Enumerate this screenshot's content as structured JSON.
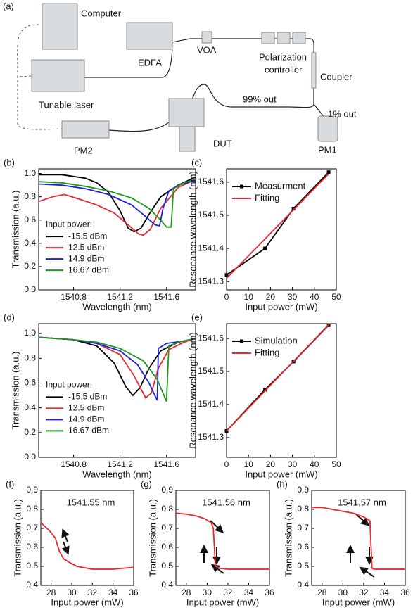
{
  "diagram": {
    "panel_label": "(a)",
    "computer": "Computer",
    "edfa": "EDFA",
    "voa": "VOA",
    "pc_line1": "Polarization",
    "pc_line2": "controller",
    "coupler": "Coupler",
    "laser": "Tunable laser",
    "out99": "99% out",
    "out1": "1% out",
    "pm2": "PM2",
    "dut": "DUT",
    "pm1": "PM1"
  },
  "chart_data": [
    {
      "type": "line",
      "panel_label": "(b)",
      "xlabel": "Wavelength (nm)",
      "ylabel": "Transmission (a.u.)",
      "xlim": [
        1540.5,
        1541.85
      ],
      "ylim": [
        0,
        1.04
      ],
      "xticks": [
        1540.8,
        1541.2,
        1541.6
      ],
      "yticks": [
        {
          "value": 0,
          "label": "0.0"
        },
        {
          "value": 0.2,
          "label": "0.2"
        },
        {
          "value": 0.4,
          "label": "0.4"
        },
        {
          "value": 0.6,
          "label": "0.6"
        },
        {
          "value": 0.8,
          "label": "0.8"
        },
        {
          "value": 1,
          "label": "1.0"
        }
      ],
      "legend_title": "Input power:",
      "series": [
        {
          "name": "-15.5 dBm",
          "color": "#000000",
          "x": [
            1540.5,
            1540.7,
            1540.9,
            1541.0,
            1541.1,
            1541.2,
            1541.27,
            1541.32,
            1541.38,
            1541.45,
            1541.55,
            1541.7,
            1541.85
          ],
          "values": [
            0.99,
            0.99,
            0.96,
            0.92,
            0.84,
            0.68,
            0.53,
            0.5,
            0.53,
            0.65,
            0.8,
            0.9,
            0.97
          ]
        },
        {
          "name": "12.5 dBm",
          "color": "#e8262b",
          "x": [
            1540.5,
            1540.62,
            1540.72,
            1540.85,
            1541.0,
            1541.15,
            1541.28,
            1541.36,
            1541.4,
            1541.46,
            1541.55,
            1541.7,
            1541.85
          ],
          "values": [
            0.76,
            0.8,
            0.82,
            0.78,
            0.73,
            0.66,
            0.55,
            0.48,
            0.47,
            0.52,
            0.7,
            0.88,
            0.95
          ]
        },
        {
          "name": "14.9 dBm",
          "color": "#1f1fe0",
          "x": [
            1540.5,
            1540.7,
            1540.9,
            1541.1,
            1541.3,
            1541.42,
            1541.5,
            1541.54,
            1541.57,
            1541.62,
            1541.7,
            1541.85
          ],
          "values": [
            0.91,
            0.9,
            0.87,
            0.82,
            0.73,
            0.63,
            0.56,
            0.55,
            0.7,
            0.85,
            0.9,
            0.94
          ]
        },
        {
          "name": "16.67 dBm",
          "color": "#1e9a1e",
          "x": [
            1540.5,
            1540.7,
            1540.9,
            1541.1,
            1541.3,
            1541.45,
            1541.55,
            1541.6,
            1541.64,
            1541.66,
            1541.75,
            1541.85
          ],
          "values": [
            0.93,
            0.92,
            0.89,
            0.85,
            0.79,
            0.7,
            0.6,
            0.54,
            0.54,
            0.87,
            0.92,
            0.95
          ]
        }
      ]
    },
    {
      "type": "line",
      "panel_label": "(c)",
      "xlabel": "Input power (mW)",
      "ylabel": "Resonance wavelength (nm)",
      "xlim": [
        0,
        50
      ],
      "ylim": [
        1541.275,
        1541.64
      ],
      "xticks": [
        0,
        10,
        20,
        30,
        40,
        50
      ],
      "yticks": [
        1541.3,
        1541.4,
        1541.5,
        1541.6
      ],
      "series": [
        {
          "name": "Measurment",
          "color": "#000000",
          "marker": "square",
          "x": [
            0,
            17.5,
            30.5,
            46.5
          ],
          "values": [
            1541.32,
            1541.4,
            1541.52,
            1541.63
          ]
        },
        {
          "name": "Fitting",
          "color": "#e8262b",
          "x": [
            0,
            46.5
          ],
          "values": [
            1541.31,
            1541.625
          ]
        }
      ]
    },
    {
      "type": "line",
      "panel_label": "(d)",
      "xlabel": "Wavelength (nm)",
      "ylabel": "Transmission (a.u.)",
      "xlim": [
        1540.5,
        1541.85
      ],
      "ylim": [
        0,
        1.08
      ],
      "xticks": [
        1540.8,
        1541.2,
        1541.6
      ],
      "yticks": [
        {
          "value": 0,
          "label": "0.0"
        },
        {
          "value": 0.2,
          "label": "0.2"
        },
        {
          "value": 0.4,
          "label": "0.4"
        },
        {
          "value": 0.6,
          "label": "0.6"
        },
        {
          "value": 0.8,
          "label": "0.8"
        },
        {
          "value": 1,
          "label": "1.0"
        }
      ],
      "legend_title": "Input power:",
      "series": [
        {
          "name": "-15.5 dBm",
          "color": "#000000",
          "x": [
            1540.5,
            1540.8,
            1541.0,
            1541.15,
            1541.25,
            1541.31,
            1541.37,
            1541.45,
            1541.55,
            1541.7,
            1541.85
          ],
          "values": [
            0.97,
            0.95,
            0.9,
            0.76,
            0.57,
            0.5,
            0.56,
            0.72,
            0.86,
            0.93,
            0.96
          ]
        },
        {
          "name": "12.5 dBm",
          "color": "#e8262b",
          "x": [
            1540.5,
            1540.8,
            1541.0,
            1541.2,
            1541.32,
            1541.42,
            1541.47,
            1541.53,
            1541.62,
            1541.75,
            1541.85
          ],
          "values": [
            0.97,
            0.95,
            0.92,
            0.83,
            0.66,
            0.48,
            0.52,
            0.72,
            0.87,
            0.93,
            0.96
          ]
        },
        {
          "name": "14.9 dBm",
          "color": "#1f1fe0",
          "x": [
            1540.5,
            1540.8,
            1541.0,
            1541.2,
            1541.35,
            1541.45,
            1541.52,
            1541.53,
            1541.6,
            1541.75,
            1541.85
          ],
          "values": [
            0.97,
            0.95,
            0.92,
            0.86,
            0.75,
            0.6,
            0.46,
            0.88,
            0.92,
            0.94,
            0.96
          ]
        },
        {
          "name": "16.67 dBm",
          "color": "#1e9a1e",
          "x": [
            1540.5,
            1540.8,
            1541.0,
            1541.2,
            1541.4,
            1541.52,
            1541.6,
            1541.62,
            1541.7,
            1541.85
          ],
          "values": [
            0.97,
            0.95,
            0.93,
            0.88,
            0.78,
            0.63,
            0.45,
            0.9,
            0.93,
            0.96
          ]
        }
      ]
    },
    {
      "type": "line",
      "panel_label": "(e)",
      "xlabel": "Input power (mW)",
      "ylabel": "Resonance wavelength (nm)",
      "xlim": [
        0,
        50
      ],
      "ylim": [
        1541.24,
        1541.645
      ],
      "xticks": [
        0,
        10,
        20,
        30,
        40,
        50
      ],
      "yticks": [
        1541.3,
        1541.4,
        1541.5,
        1541.6
      ],
      "series": [
        {
          "name": "Simulation",
          "color": "#000000",
          "marker": "square",
          "x": [
            0,
            17.5,
            30.5,
            46.5
          ],
          "values": [
            1541.32,
            1541.445,
            1541.53,
            1541.64
          ]
        },
        {
          "name": "Fitting",
          "color": "#e8262b",
          "x": [
            0,
            47
          ],
          "values": [
            1541.32,
            1541.645
          ]
        }
      ]
    },
    {
      "type": "line",
      "panel_label": "(f)",
      "annotation": "1541.55 nm",
      "xlabel": "Input power (mW)",
      "ylabel": "Transmission (a.u.)",
      "xlim": [
        27,
        36
      ],
      "ylim": [
        0.4,
        0.9
      ],
      "xticks": [
        28,
        30,
        32,
        34,
        36
      ],
      "yticks": [
        0.4,
        0.5,
        0.6,
        0.7,
        0.8,
        0.9
      ],
      "series": [
        {
          "color": "#e8262b",
          "x": [
            27,
            27.8,
            28.4,
            28.8,
            29.2,
            29.8,
            30.5,
            32,
            34,
            36
          ],
          "values": [
            0.73,
            0.69,
            0.65,
            0.58,
            0.54,
            0.52,
            0.5,
            0.485,
            0.485,
            0.495
          ]
        }
      ]
    },
    {
      "type": "line",
      "panel_label": "(g)",
      "annotation": "1541.56 nm",
      "xlabel": "Input power (mW)",
      "ylabel": "Transmission (a.u.)",
      "xlim": [
        27,
        36
      ],
      "ylim": [
        0.4,
        0.9
      ],
      "xticks": [
        28,
        30,
        32,
        34,
        36
      ],
      "yticks": [
        0.4,
        0.5,
        0.6,
        0.7,
        0.8,
        0.9
      ],
      "series": [
        {
          "color": "#e8262b",
          "x": [
            27,
            28,
            29,
            29.8,
            30.4,
            30.6,
            30.8,
            31.2,
            32,
            34,
            36
          ],
          "values": [
            0.78,
            0.775,
            0.765,
            0.75,
            0.73,
            0.7,
            0.5,
            0.49,
            0.485,
            0.485,
            0.485
          ]
        }
      ]
    },
    {
      "type": "line",
      "panel_label": "(h)",
      "annotation": "1541.57 nm",
      "xlabel": "Input power (mW)",
      "ylabel": "Transmission (a.u.)",
      "xlim": [
        27,
        36
      ],
      "ylim": [
        0.4,
        0.9
      ],
      "xticks": [
        28,
        30,
        32,
        34,
        36
      ],
      "yticks": [
        0.4,
        0.5,
        0.6,
        0.7,
        0.8,
        0.9
      ],
      "series": [
        {
          "color": "#e8262b",
          "x": [
            27,
            28,
            29,
            30,
            31,
            32,
            32.6,
            32.8,
            33,
            34,
            36
          ],
          "values": [
            0.81,
            0.81,
            0.8,
            0.79,
            0.78,
            0.76,
            0.74,
            0.49,
            0.485,
            0.485,
            0.485
          ]
        }
      ]
    }
  ]
}
